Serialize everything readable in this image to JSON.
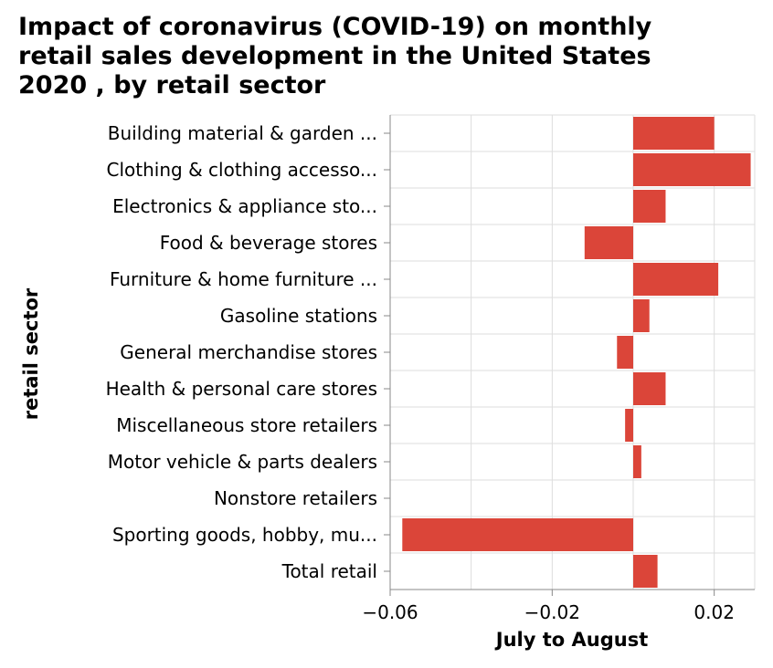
{
  "chart_data": {
    "type": "bar",
    "orientation": "horizontal",
    "title": "Impact of coronavirus (COVID-19) on monthly retail sales development in the United States 2020 , by retail sector",
    "title_lines": [
      "Impact of coronavirus (COVID-19) on monthly",
      "retail sales development in the United States",
      "2020 , by retail sector"
    ],
    "xlabel": "July to August",
    "ylabel": "retail sector",
    "categories": [
      "Building material & garden ...",
      "Clothing & clothing accesso...",
      "Electronics & appliance sto...",
      "Food & beverage stores",
      "Furniture & home furniture ...",
      "Gasoline stations",
      "General merchandise stores",
      "Health & personal care stores",
      "Miscellaneous store retailers",
      "Motor vehicle & parts dealers",
      "Nonstore retailers",
      "Sporting goods, hobby, mu...",
      "Total retail"
    ],
    "values": [
      0.02,
      0.029,
      0.008,
      -0.012,
      0.021,
      0.004,
      -0.004,
      0.008,
      -0.002,
      0.002,
      0.0,
      -0.057,
      0.006
    ],
    "xlim": [
      -0.06,
      0.03
    ],
    "xticks": [
      -0.06,
      -0.02,
      0.02
    ],
    "xtick_labels": [
      "−0.06",
      "−0.02",
      "0.02"
    ],
    "x_gridlines": [
      -0.06,
      -0.04,
      -0.02,
      0,
      0.02,
      0.03
    ],
    "grid": true,
    "legend": "none",
    "bar_color": "#db4539",
    "grid_color": "#dddddd"
  }
}
